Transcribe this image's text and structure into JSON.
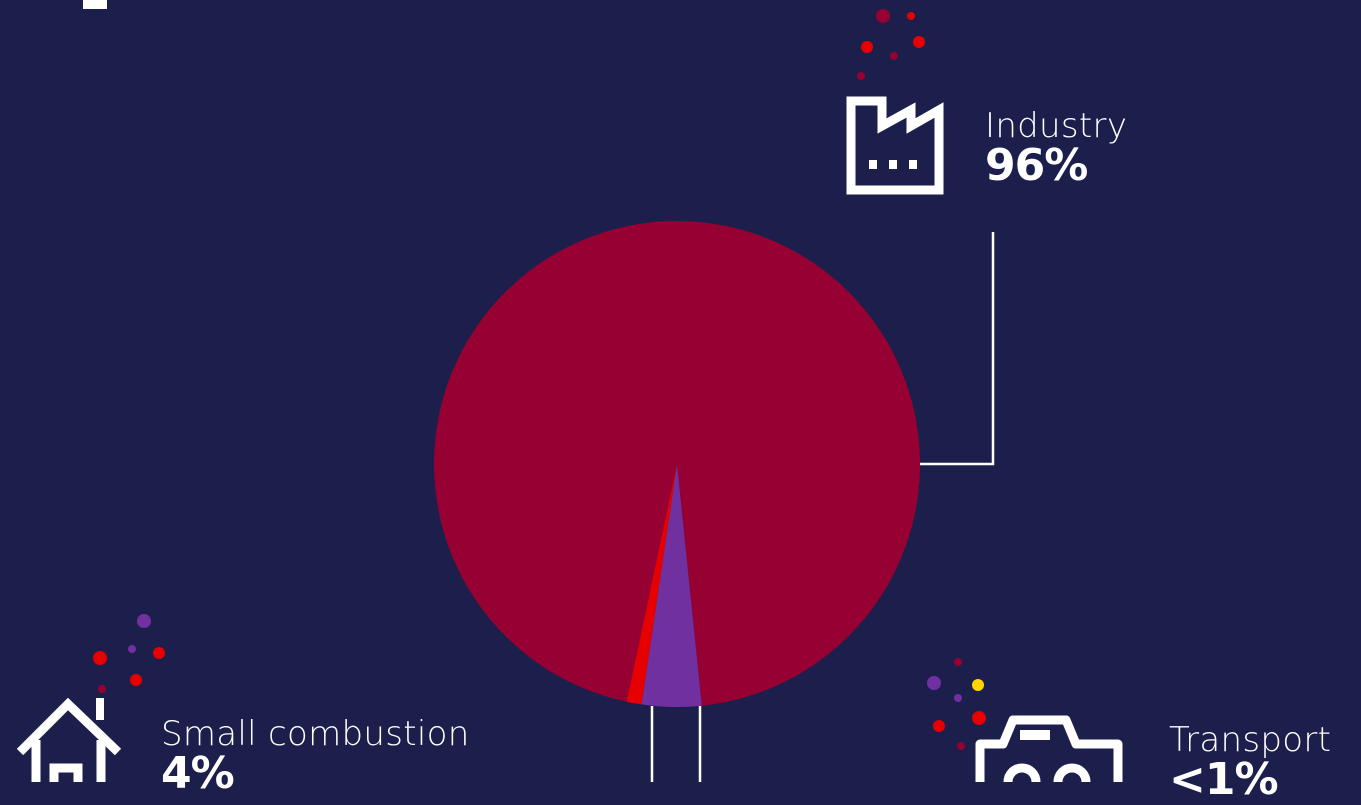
{
  "chart_data": {
    "type": "pie",
    "categories": [
      "Industry",
      "Small combustion",
      "Transport"
    ],
    "values": [
      96,
      4,
      1
    ],
    "value_labels": [
      "96%",
      "4%",
      "<1%"
    ],
    "colors": [
      "#960032",
      "#7030a0",
      "#e60000"
    ],
    "legend": "none"
  },
  "labels": {
    "industry": {
      "name": "Industry",
      "value": "96%",
      "icon": "factory-icon"
    },
    "small_combustion": {
      "name": "Small combustion",
      "value": "4%",
      "icon": "house-icon"
    },
    "transport": {
      "name": "Transport",
      "value": "<1%",
      "icon": "car-icon"
    }
  },
  "colors": {
    "background": "#1c1f4b",
    "text": "#ffffff",
    "industry": "#960032",
    "small_combustion": "#7030a0",
    "transport": "#e60000",
    "accent_yellow": "#ffd700"
  }
}
